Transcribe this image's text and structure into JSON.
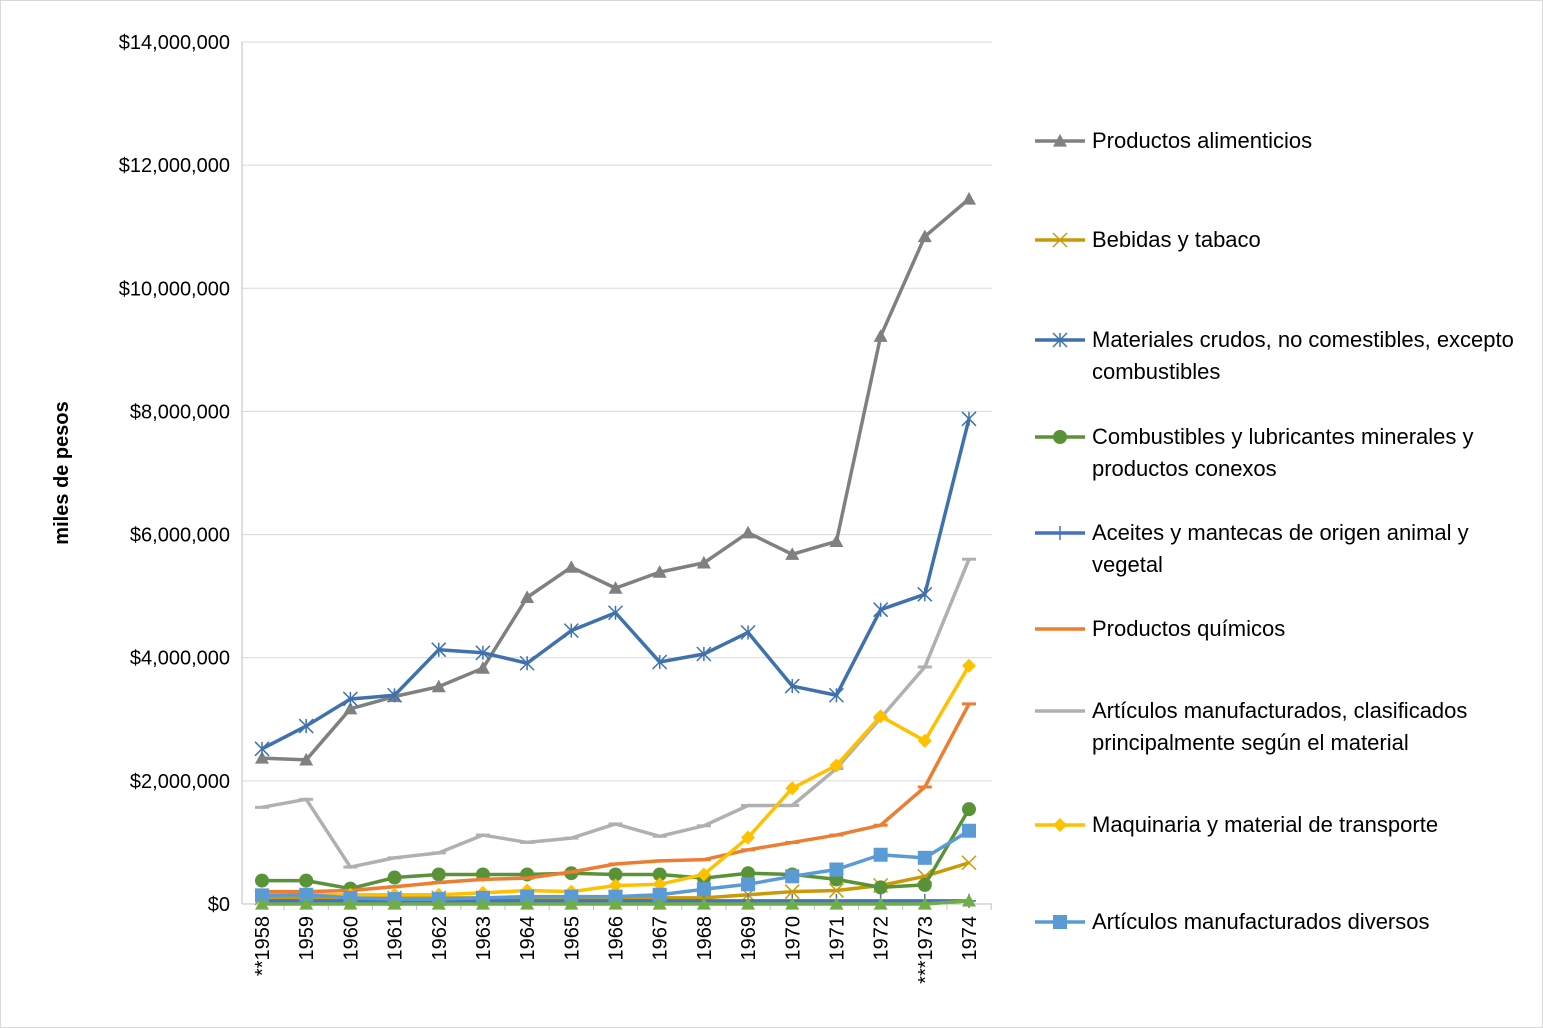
{
  "chart_data": {
    "type": "line",
    "ylabel": "miles de pesos",
    "categories": [
      "**1958",
      "1959",
      "1960",
      "1961",
      "1962",
      "1963",
      "1964",
      "1965",
      "1966",
      "1967",
      "1968",
      "1969",
      "1970",
      "1971",
      "1972",
      "***1973",
      "1974"
    ],
    "ylim": [
      0,
      14000000
    ],
    "yticks": [
      {
        "value": 0,
        "label": "$0"
      },
      {
        "value": 2000000,
        "label": "$2,000,000"
      },
      {
        "value": 4000000,
        "label": "$4,000,000"
      },
      {
        "value": 6000000,
        "label": "$6,000,000"
      },
      {
        "value": 8000000,
        "label": "$8,000,000"
      },
      {
        "value": 10000000,
        "label": "$10,000,000"
      },
      {
        "value": 12000000,
        "label": "$12,000,000"
      },
      {
        "value": 14000000,
        "label": "$14,000,000"
      }
    ],
    "grid": true,
    "legend": "right",
    "series": [
      {
        "name": "Productos alimenticios",
        "color": "#808080",
        "marker": "triangle",
        "values": [
          2370000,
          2340000,
          3170000,
          3370000,
          3530000,
          3830000,
          4980000,
          5470000,
          5130000,
          5390000,
          5540000,
          6030000,
          5680000,
          5890000,
          9220000,
          10840000,
          11450000
        ]
      },
      {
        "name": "Bebidas y tabaco",
        "color": "#c99a06",
        "marker": "x",
        "values": [
          100000,
          100000,
          100000,
          100000,
          100000,
          100000,
          100000,
          100000,
          100000,
          100000,
          100000,
          150000,
          200000,
          220000,
          300000,
          450000,
          670000
        ]
      },
      {
        "name": "Materiales crudos, no comestibles, excepto combustibles",
        "color": "#3f72ad",
        "marker": "asterisk",
        "values": [
          2520000,
          2890000,
          3330000,
          3390000,
          4130000,
          4080000,
          3910000,
          4440000,
          4730000,
          3930000,
          4060000,
          4410000,
          3540000,
          3390000,
          4780000,
          5030000,
          7880000
        ]
      },
      {
        "name": "Combustibles y lubricantes minerales y productos conexos",
        "color": "#5a9237",
        "marker": "circle",
        "values": [
          380000,
          380000,
          250000,
          430000,
          480000,
          480000,
          480000,
          500000,
          480000,
          480000,
          420000,
          500000,
          480000,
          400000,
          270000,
          310000,
          1540000
        ]
      },
      {
        "name": "Aceites y mantecas de origen animal y vegetal",
        "color": "#4472c4",
        "marker": "plus",
        "values": [
          50000,
          50000,
          50000,
          50000,
          50000,
          50000,
          50000,
          50000,
          50000,
          50000,
          50000,
          50000,
          50000,
          50000,
          50000,
          50000,
          50000
        ]
      },
      {
        "name": "Productos químicos",
        "color": "#ed7d31",
        "marker": "dash",
        "values": [
          200000,
          200000,
          220000,
          280000,
          350000,
          400000,
          420000,
          520000,
          650000,
          700000,
          720000,
          880000,
          1000000,
          1120000,
          1280000,
          1900000,
          3250000
        ]
      },
      {
        "name": "Artículos manufacturados, clasificados principalmente según el material",
        "color": "#b0b0b0",
        "marker": "dash",
        "values": [
          1570000,
          1700000,
          600000,
          750000,
          830000,
          1120000,
          1000000,
          1070000,
          1300000,
          1100000,
          1270000,
          1600000,
          1600000,
          2200000,
          3020000,
          3850000,
          5600000
        ]
      },
      {
        "name": "Maquinaria y material de transporte",
        "color": "#ffc000",
        "marker": "diamond",
        "values": [
          150000,
          150000,
          150000,
          150000,
          150000,
          180000,
          220000,
          200000,
          300000,
          320000,
          480000,
          1080000,
          1880000,
          2250000,
          3050000,
          2650000,
          3870000
        ]
      },
      {
        "name": "Artículos manufacturados diversos",
        "color": "#5b9bd5",
        "marker": "square",
        "values": [
          140000,
          150000,
          100000,
          80000,
          80000,
          100000,
          120000,
          120000,
          120000,
          150000,
          240000,
          320000,
          450000,
          560000,
          800000,
          750000,
          1190000
        ]
      },
      {
        "color": "#70ad47",
        "marker": "triangle",
        "values": [
          0,
          0,
          0,
          0,
          0,
          0,
          0,
          0,
          0,
          0,
          0,
          0,
          0,
          0,
          0,
          0,
          50000
        ]
      }
    ]
  }
}
